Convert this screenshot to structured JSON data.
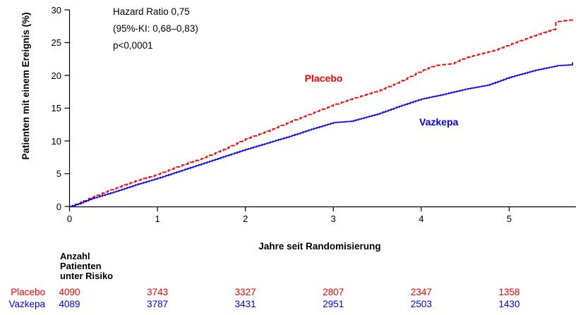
{
  "chart_data": {
    "type": "line",
    "title": "",
    "xlabel": "Jahre seit Randomisierung",
    "ylabel": "Patienten mit einem Ereignis (%)",
    "xlim": [
      0,
      5.75
    ],
    "ylim": [
      0,
      30
    ],
    "xticks": [
      0,
      1,
      2,
      3,
      4,
      5
    ],
    "yticks": [
      0,
      5,
      10,
      15,
      20,
      25,
      30
    ],
    "grid": false,
    "annotations": [
      "Hazard Ratio 0,75",
      "(95%-KI: 0,68–0,83)",
      "p<0,0001"
    ],
    "series": [
      {
        "name": "Placebo",
        "color": "#ff0000",
        "style": "dashed",
        "label_pos": [
          2.89,
          19.6
        ],
        "points": [
          [
            0,
            0
          ],
          [
            0.1,
            0.5
          ],
          [
            0.25,
            1.4
          ],
          [
            0.5,
            2.7
          ],
          [
            0.75,
            3.9
          ],
          [
            1,
            4.9
          ],
          [
            1.25,
            6.2
          ],
          [
            1.5,
            7.3
          ],
          [
            1.75,
            8.7
          ],
          [
            2,
            10.3
          ],
          [
            2.25,
            11.5
          ],
          [
            2.5,
            12.9
          ],
          [
            2.75,
            14.2
          ],
          [
            3,
            15.5
          ],
          [
            3.25,
            16.6
          ],
          [
            3.5,
            17.6
          ],
          [
            3.75,
            19.0
          ],
          [
            4,
            20.7
          ],
          [
            4.05,
            21.0
          ],
          [
            4.15,
            21.5
          ],
          [
            4.35,
            21.8
          ],
          [
            4.5,
            22.7
          ],
          [
            4.85,
            23.9
          ],
          [
            5,
            24.7
          ],
          [
            5.25,
            25.9
          ],
          [
            5.45,
            26.8
          ],
          [
            5.5,
            27.0
          ],
          [
            5.53,
            28.2
          ],
          [
            5.72,
            28.5
          ]
        ]
      },
      {
        "name": "Vazkepa",
        "color": "#0000ff",
        "style": "solid",
        "label_pos": [
          4.2,
          12.9
        ],
        "points": [
          [
            0,
            0
          ],
          [
            0.1,
            0.4
          ],
          [
            0.25,
            1.2
          ],
          [
            0.5,
            2.2
          ],
          [
            0.75,
            3.3
          ],
          [
            1,
            4.3
          ],
          [
            1.25,
            5.4
          ],
          [
            1.5,
            6.5
          ],
          [
            1.75,
            7.6
          ],
          [
            2,
            8.7
          ],
          [
            2.25,
            9.7
          ],
          [
            2.5,
            10.7
          ],
          [
            2.75,
            11.8
          ],
          [
            3,
            12.8
          ],
          [
            3.2,
            13.0
          ],
          [
            3.5,
            14.1
          ],
          [
            3.75,
            15.3
          ],
          [
            4,
            16.4
          ],
          [
            4.25,
            17.1
          ],
          [
            4.5,
            17.9
          ],
          [
            4.75,
            18.5
          ],
          [
            5,
            19.7
          ],
          [
            5.3,
            20.8
          ],
          [
            5.55,
            21.5
          ],
          [
            5.68,
            21.6
          ],
          [
            5.72,
            22.0
          ]
        ]
      }
    ],
    "risk_table": {
      "header": "Anzahl Patienten unter Risiko",
      "times": [
        0,
        1,
        2,
        3,
        4,
        5
      ],
      "rows": [
        {
          "name": "Placebo",
          "color": "#ff0000",
          "values": [
            "4090",
            "3743",
            "3327",
            "2807",
            "2347",
            "1358"
          ]
        },
        {
          "name": "Vazkepa",
          "color": "#0000ff",
          "values": [
            "4089",
            "3787",
            "3431",
            "2951",
            "2503",
            "1430"
          ]
        }
      ]
    },
    "axis_color": "#000000"
  }
}
